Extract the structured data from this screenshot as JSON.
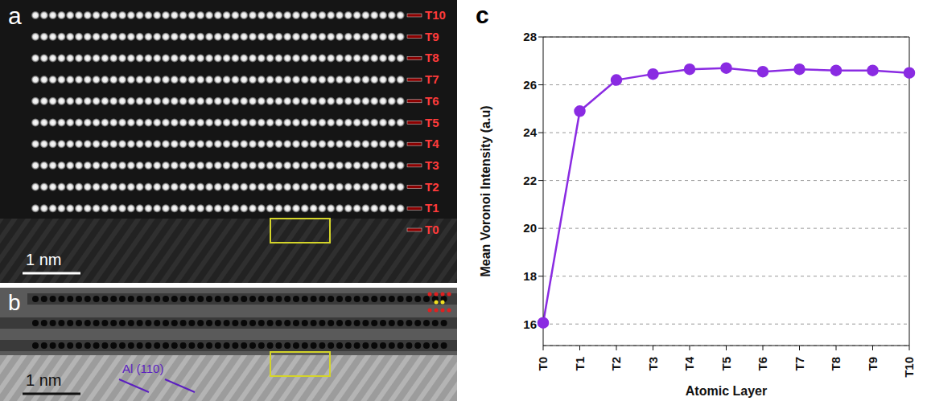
{
  "panels": [
    {
      "label": "a",
      "scale_bar": "1 nm",
      "layers": [
        "T10",
        "T9",
        "T8",
        "T7",
        "T6",
        "T5",
        "T4",
        "T3",
        "T2",
        "T1",
        "T0"
      ]
    },
    {
      "label": "b",
      "scale_bar": "1 nm",
      "annotation": "Al (110)"
    },
    {
      "label": "c"
    }
  ],
  "chart_data": {
    "type": "line",
    "x_label": "Atomic Layer",
    "y_label": "Mean Voronoi Intensity (a.u)",
    "categories": [
      "T0",
      "T1",
      "T2",
      "T3",
      "T4",
      "T5",
      "T6",
      "T7",
      "T8",
      "T9",
      "T10"
    ],
    "values": [
      16.05,
      24.9,
      26.2,
      26.45,
      26.65,
      26.7,
      26.55,
      26.65,
      26.6,
      26.6,
      26.5
    ],
    "color": "#8a2be2",
    "marker": "circle",
    "ylim": [
      15.1,
      28
    ],
    "yticks": [
      16,
      18,
      20,
      22,
      24,
      26,
      28
    ],
    "grid": true
  }
}
